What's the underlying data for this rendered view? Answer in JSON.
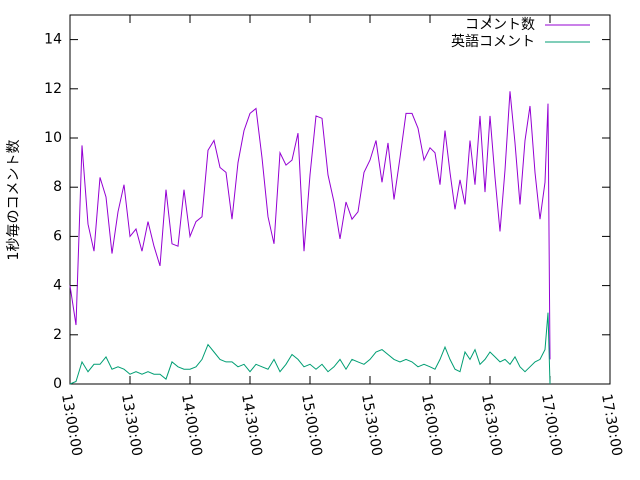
{
  "chart_data": {
    "type": "line",
    "y_label": "1秒毎のコメント数",
    "x": [
      "13:00:00",
      "13:03:00",
      "13:06:00",
      "13:09:00",
      "13:12:00",
      "13:15:00",
      "13:18:00",
      "13:21:00",
      "13:24:00",
      "13:27:00",
      "13:30:00",
      "13:33:00",
      "13:36:00",
      "13:39:00",
      "13:42:00",
      "13:45:00",
      "13:48:00",
      "13:51:00",
      "13:54:00",
      "13:57:00",
      "14:00:00",
      "14:03:00",
      "14:06:00",
      "14:09:00",
      "14:12:00",
      "14:15:00",
      "14:18:00",
      "14:21:00",
      "14:24:00",
      "14:27:00",
      "14:30:00",
      "14:33:00",
      "14:36:00",
      "14:39:00",
      "14:42:00",
      "14:45:00",
      "14:48:00",
      "14:51:00",
      "14:54:00",
      "14:57:00",
      "15:00:00",
      "15:03:00",
      "15:06:00",
      "15:09:00",
      "15:12:00",
      "15:15:00",
      "15:18:00",
      "15:21:00",
      "15:24:00",
      "15:27:00",
      "15:30:00",
      "15:33:00",
      "15:36:00",
      "15:39:00",
      "15:42:00",
      "15:45:00",
      "15:48:00",
      "15:51:00",
      "15:54:00",
      "15:57:00",
      "16:00:00",
      "16:02:30",
      "16:05:00",
      "16:07:30",
      "16:10:00",
      "16:12:30",
      "16:15:00",
      "16:17:30",
      "16:20:00",
      "16:22:30",
      "16:25:00",
      "16:27:30",
      "16:30:00",
      "16:32:30",
      "16:35:00",
      "16:37:30",
      "16:40:00",
      "16:42:30",
      "16:45:00",
      "16:47:30",
      "16:50:00",
      "16:52:30",
      "16:55:00",
      "16:57:30",
      "16:59:00",
      "17:00:00"
    ],
    "series": [
      {
        "name": "コメント数",
        "color": "#9400d3",
        "values": [
          4.0,
          2.4,
          9.7,
          6.5,
          5.4,
          8.4,
          7.6,
          5.3,
          7.0,
          8.1,
          6.0,
          6.3,
          5.4,
          6.6,
          5.6,
          4.8,
          7.9,
          5.7,
          5.6,
          7.9,
          6.0,
          6.6,
          6.8,
          9.5,
          9.9,
          8.8,
          8.6,
          6.7,
          9.0,
          10.3,
          11.0,
          11.2,
          9.2,
          6.8,
          5.7,
          9.4,
          8.9,
          9.1,
          10.2,
          5.4,
          8.5,
          10.9,
          10.8,
          8.5,
          7.4,
          5.9,
          7.4,
          6.7,
          7.0,
          8.6,
          9.1,
          9.9,
          8.2,
          9.8,
          7.5,
          9.2,
          11.0,
          11.0,
          10.4,
          9.1,
          9.6,
          9.4,
          8.1,
          10.3,
          8.6,
          7.1,
          8.3,
          7.3,
          9.9,
          8.1,
          10.9,
          7.8,
          10.9,
          8.4,
          6.2,
          8.7,
          11.9,
          9.8,
          7.3,
          9.9,
          11.3,
          8.6,
          6.7,
          8.2,
          11.4,
          1.0
        ]
      },
      {
        "name": "英語コメント",
        "color": "#009e73",
        "values": [
          0.0,
          0.1,
          0.9,
          0.5,
          0.8,
          0.8,
          1.1,
          0.6,
          0.7,
          0.6,
          0.4,
          0.5,
          0.4,
          0.5,
          0.4,
          0.4,
          0.2,
          0.9,
          0.7,
          0.6,
          0.6,
          0.7,
          1.0,
          1.6,
          1.3,
          1.0,
          0.9,
          0.9,
          0.7,
          0.8,
          0.5,
          0.8,
          0.7,
          0.6,
          1.0,
          0.5,
          0.8,
          1.2,
          1.0,
          0.7,
          0.8,
          0.6,
          0.8,
          0.5,
          0.7,
          1.0,
          0.6,
          1.0,
          0.9,
          0.8,
          1.0,
          1.3,
          1.4,
          1.2,
          1.0,
          0.9,
          1.0,
          0.9,
          0.7,
          0.8,
          0.7,
          0.6,
          1.0,
          1.5,
          1.0,
          0.6,
          0.5,
          1.3,
          1.0,
          1.4,
          0.8,
          1.0,
          1.3,
          1.1,
          0.9,
          1.0,
          0.8,
          1.1,
          0.7,
          0.5,
          0.7,
          0.9,
          1.0,
          1.4,
          2.9,
          0.0
        ]
      }
    ],
    "xlim": [
      "13:00:00",
      "17:30:00"
    ],
    "xticks": [
      "13:00:00",
      "13:30:00",
      "14:00:00",
      "14:30:00",
      "15:00:00",
      "15:30:00",
      "16:00:00",
      "16:30:00",
      "17:00:00",
      "17:30:00"
    ],
    "ylim": [
      0,
      15
    ],
    "yticks": [
      0,
      2,
      4,
      6,
      8,
      10,
      12,
      14
    ],
    "grid": false,
    "legend": "top-right"
  }
}
